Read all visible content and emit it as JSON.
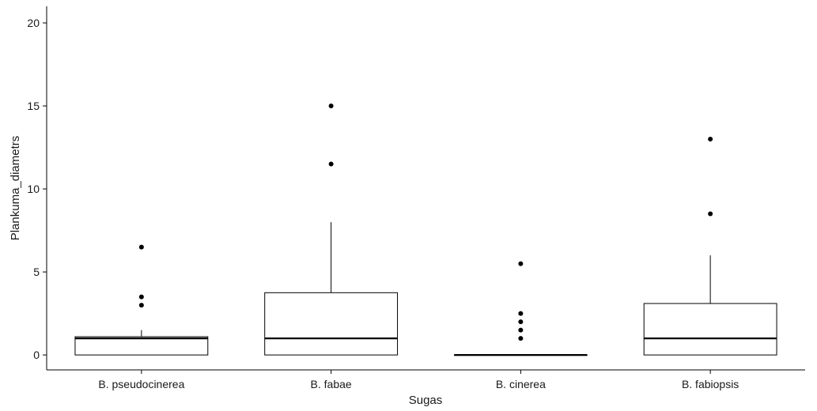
{
  "chart_data": {
    "type": "boxplot",
    "title": "",
    "xlabel": "Sugas",
    "ylabel": "Plankuma_diametrs",
    "ylim": [
      -0.9,
      21
    ],
    "yticks": [
      0,
      5,
      10,
      15,
      20
    ],
    "ytick_labels": [
      "0",
      "5",
      "10",
      "15",
      "20"
    ],
    "categories": [
      "B. pseudocinerea",
      "B. fabae",
      "B. cinerea",
      "B. fabiopsis"
    ],
    "boxes": [
      {
        "category": "B. pseudocinerea",
        "min": 0,
        "q1": 0,
        "median": 1,
        "q3": 1.1,
        "max": 1.5,
        "outliers": [
          3,
          3.5,
          6.5
        ]
      },
      {
        "category": "B. fabae",
        "min": 0,
        "q1": 0,
        "median": 1,
        "q3": 3.75,
        "max": 8,
        "outliers": [
          11.5,
          15
        ]
      },
      {
        "category": "B. cinerea",
        "min": 0,
        "q1": 0,
        "median": 0,
        "q3": 0,
        "max": 0,
        "outliers": [
          1,
          1.5,
          2,
          2.5,
          5.5
        ]
      },
      {
        "category": "B. fabiopsis",
        "min": 0,
        "q1": 0,
        "median": 1,
        "q3": 3.1,
        "max": 6,
        "outliers": [
          8.5,
          13
        ]
      }
    ],
    "grid": false,
    "legend": "none",
    "colors": {
      "box_fill": "#ffffff",
      "stroke": "#000000",
      "text": "#1a1a1a"
    }
  }
}
